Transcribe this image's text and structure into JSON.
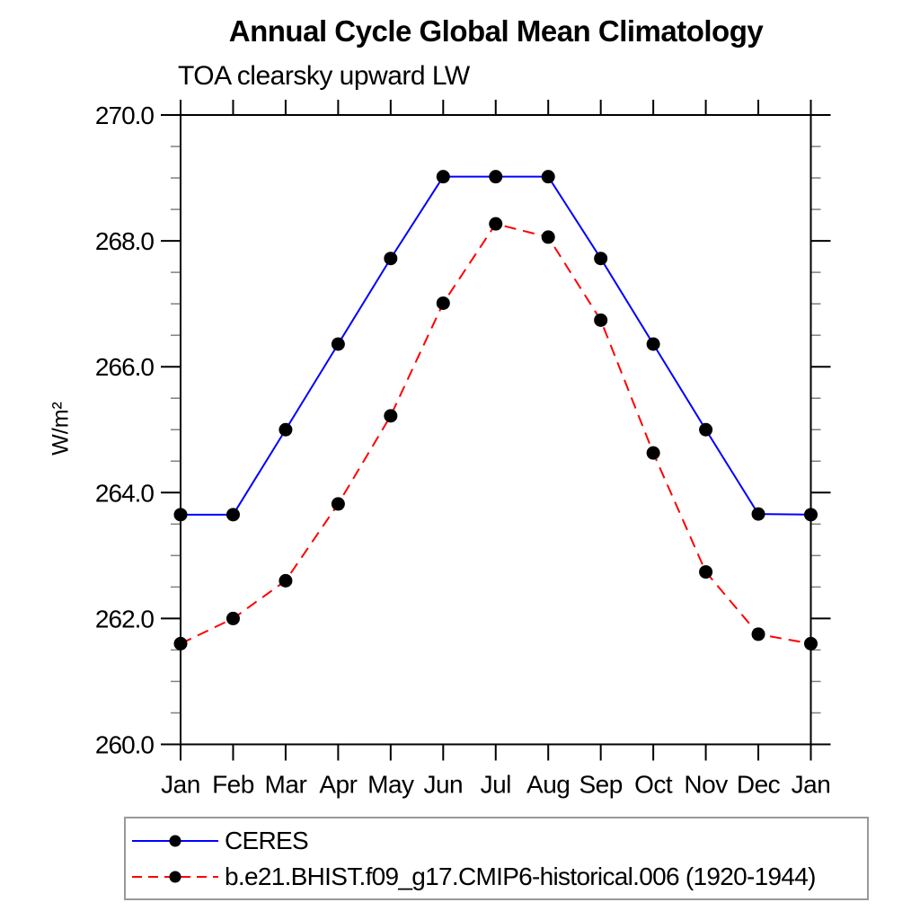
{
  "title": "Annual Cycle Global Mean Climatology",
  "subtitle": "TOA clearsky upward LW",
  "colors": {
    "axis": "#000000",
    "minor_tick": "#808080",
    "marker": "#000000",
    "ceres_line": "#0000ff",
    "model_line": "#ff0000",
    "legend_border": "#999999"
  },
  "chart_data": {
    "type": "line",
    "title": "Annual Cycle Global Mean Climatology",
    "subtitle": "TOA clearsky upward LW",
    "xlabel": "",
    "ylabel": "W/m²",
    "categories": [
      "Jan",
      "Feb",
      "Mar",
      "Apr",
      "May",
      "Jun",
      "Jul",
      "Aug",
      "Sep",
      "Oct",
      "Nov",
      "Dec",
      "Jan"
    ],
    "ylim": [
      260.0,
      270.0
    ],
    "ytick_major": [
      {
        "value": 260.0,
        "label": "260.0"
      },
      {
        "value": 262.0,
        "label": "262.0"
      },
      {
        "value": 264.0,
        "label": "264.0"
      },
      {
        "value": 266.0,
        "label": "266.0"
      },
      {
        "value": 268.0,
        "label": "268.0"
      },
      {
        "value": 270.0,
        "label": "270.0"
      }
    ],
    "ytick_minor_step": 0.5,
    "grid": false,
    "legend_position": "bottom-left-box",
    "series": [
      {
        "name": "CERES",
        "color": "#0000ff",
        "line_style": "solid",
        "marker": "filled-circle",
        "marker_color": "#000000",
        "values": [
          263.65,
          263.65,
          265.0,
          266.36,
          267.72,
          269.02,
          269.02,
          269.02,
          267.72,
          266.36,
          265.0,
          263.66,
          263.65
        ]
      },
      {
        "name": "b.e21.BHIST.f09_g17.CMIP6-historical.006 (1920-1944)",
        "color": "#ff0000",
        "line_style": "dashed",
        "marker": "filled-circle",
        "marker_color": "#000000",
        "values": [
          261.6,
          262.0,
          262.6,
          263.82,
          265.22,
          267.01,
          268.27,
          268.06,
          266.74,
          264.63,
          262.74,
          261.75,
          261.6
        ]
      }
    ]
  }
}
